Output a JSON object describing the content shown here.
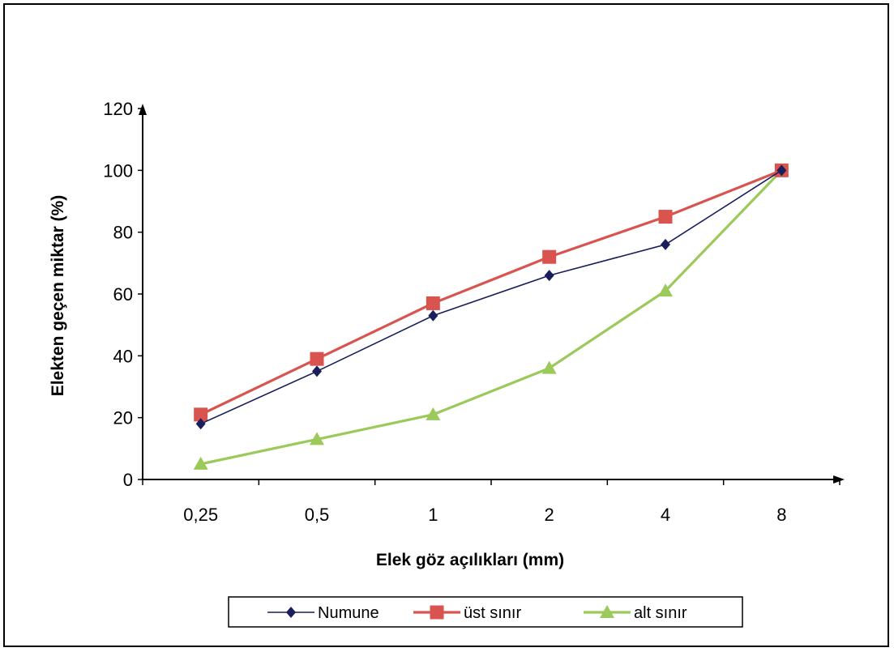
{
  "chart_data": {
    "type": "line",
    "title": "",
    "xlabel": "Elek göz açılıkları (mm)",
    "ylabel": "Elekten geçen miktar (%)",
    "categories": [
      "0,25",
      "0,5",
      "1",
      "2",
      "4",
      "8"
    ],
    "ylim": [
      0,
      120
    ],
    "yticks": [
      "0",
      "20",
      "40",
      "60",
      "80",
      "100",
      "120"
    ],
    "grid": false,
    "legend_position": "bottom",
    "series": [
      {
        "name": "Numune",
        "values": [
          18,
          35,
          53,
          66,
          76,
          100
        ],
        "color": "#1a1f5c",
        "marker": "diamond"
      },
      {
        "name": "üst sınır",
        "values": [
          21,
          39,
          57,
          72,
          85,
          100
        ],
        "color": "#d9534f",
        "marker": "square"
      },
      {
        "name": "alt sınır",
        "values": [
          5,
          13,
          21,
          36,
          61,
          100
        ],
        "color": "#9bc95a",
        "marker": "triangle"
      }
    ]
  }
}
